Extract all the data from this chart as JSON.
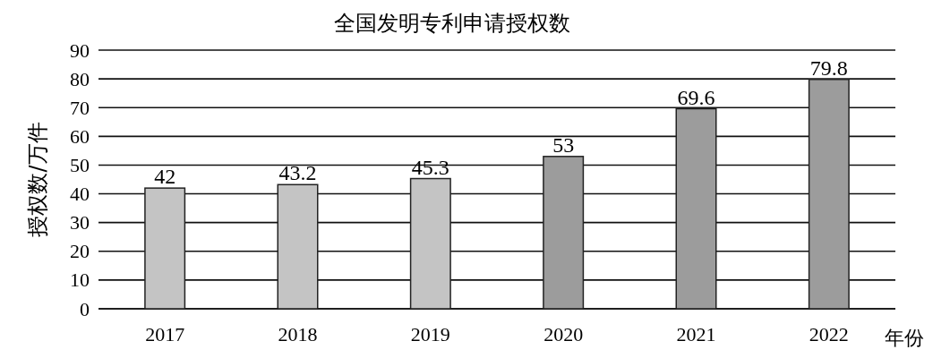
{
  "chart_data": {
    "type": "bar",
    "title": "全国发明专利申请授权数",
    "xlabel": "年份",
    "ylabel": "授权数/万件",
    "categories": [
      "2017",
      "2018",
      "2019",
      "2020",
      "2021",
      "2022"
    ],
    "values": [
      42,
      43.2,
      45.3,
      53,
      69.6,
      79.8
    ],
    "colors": [
      "#c4c4c4",
      "#c4c4c4",
      "#c4c4c4",
      "#9c9c9c",
      "#9c9c9c",
      "#9c9c9c"
    ],
    "ylim": [
      0,
      90
    ],
    "yticks": [
      0,
      10,
      20,
      30,
      40,
      50,
      60,
      70,
      80,
      90
    ],
    "grid": "y",
    "data_labels": true
  }
}
